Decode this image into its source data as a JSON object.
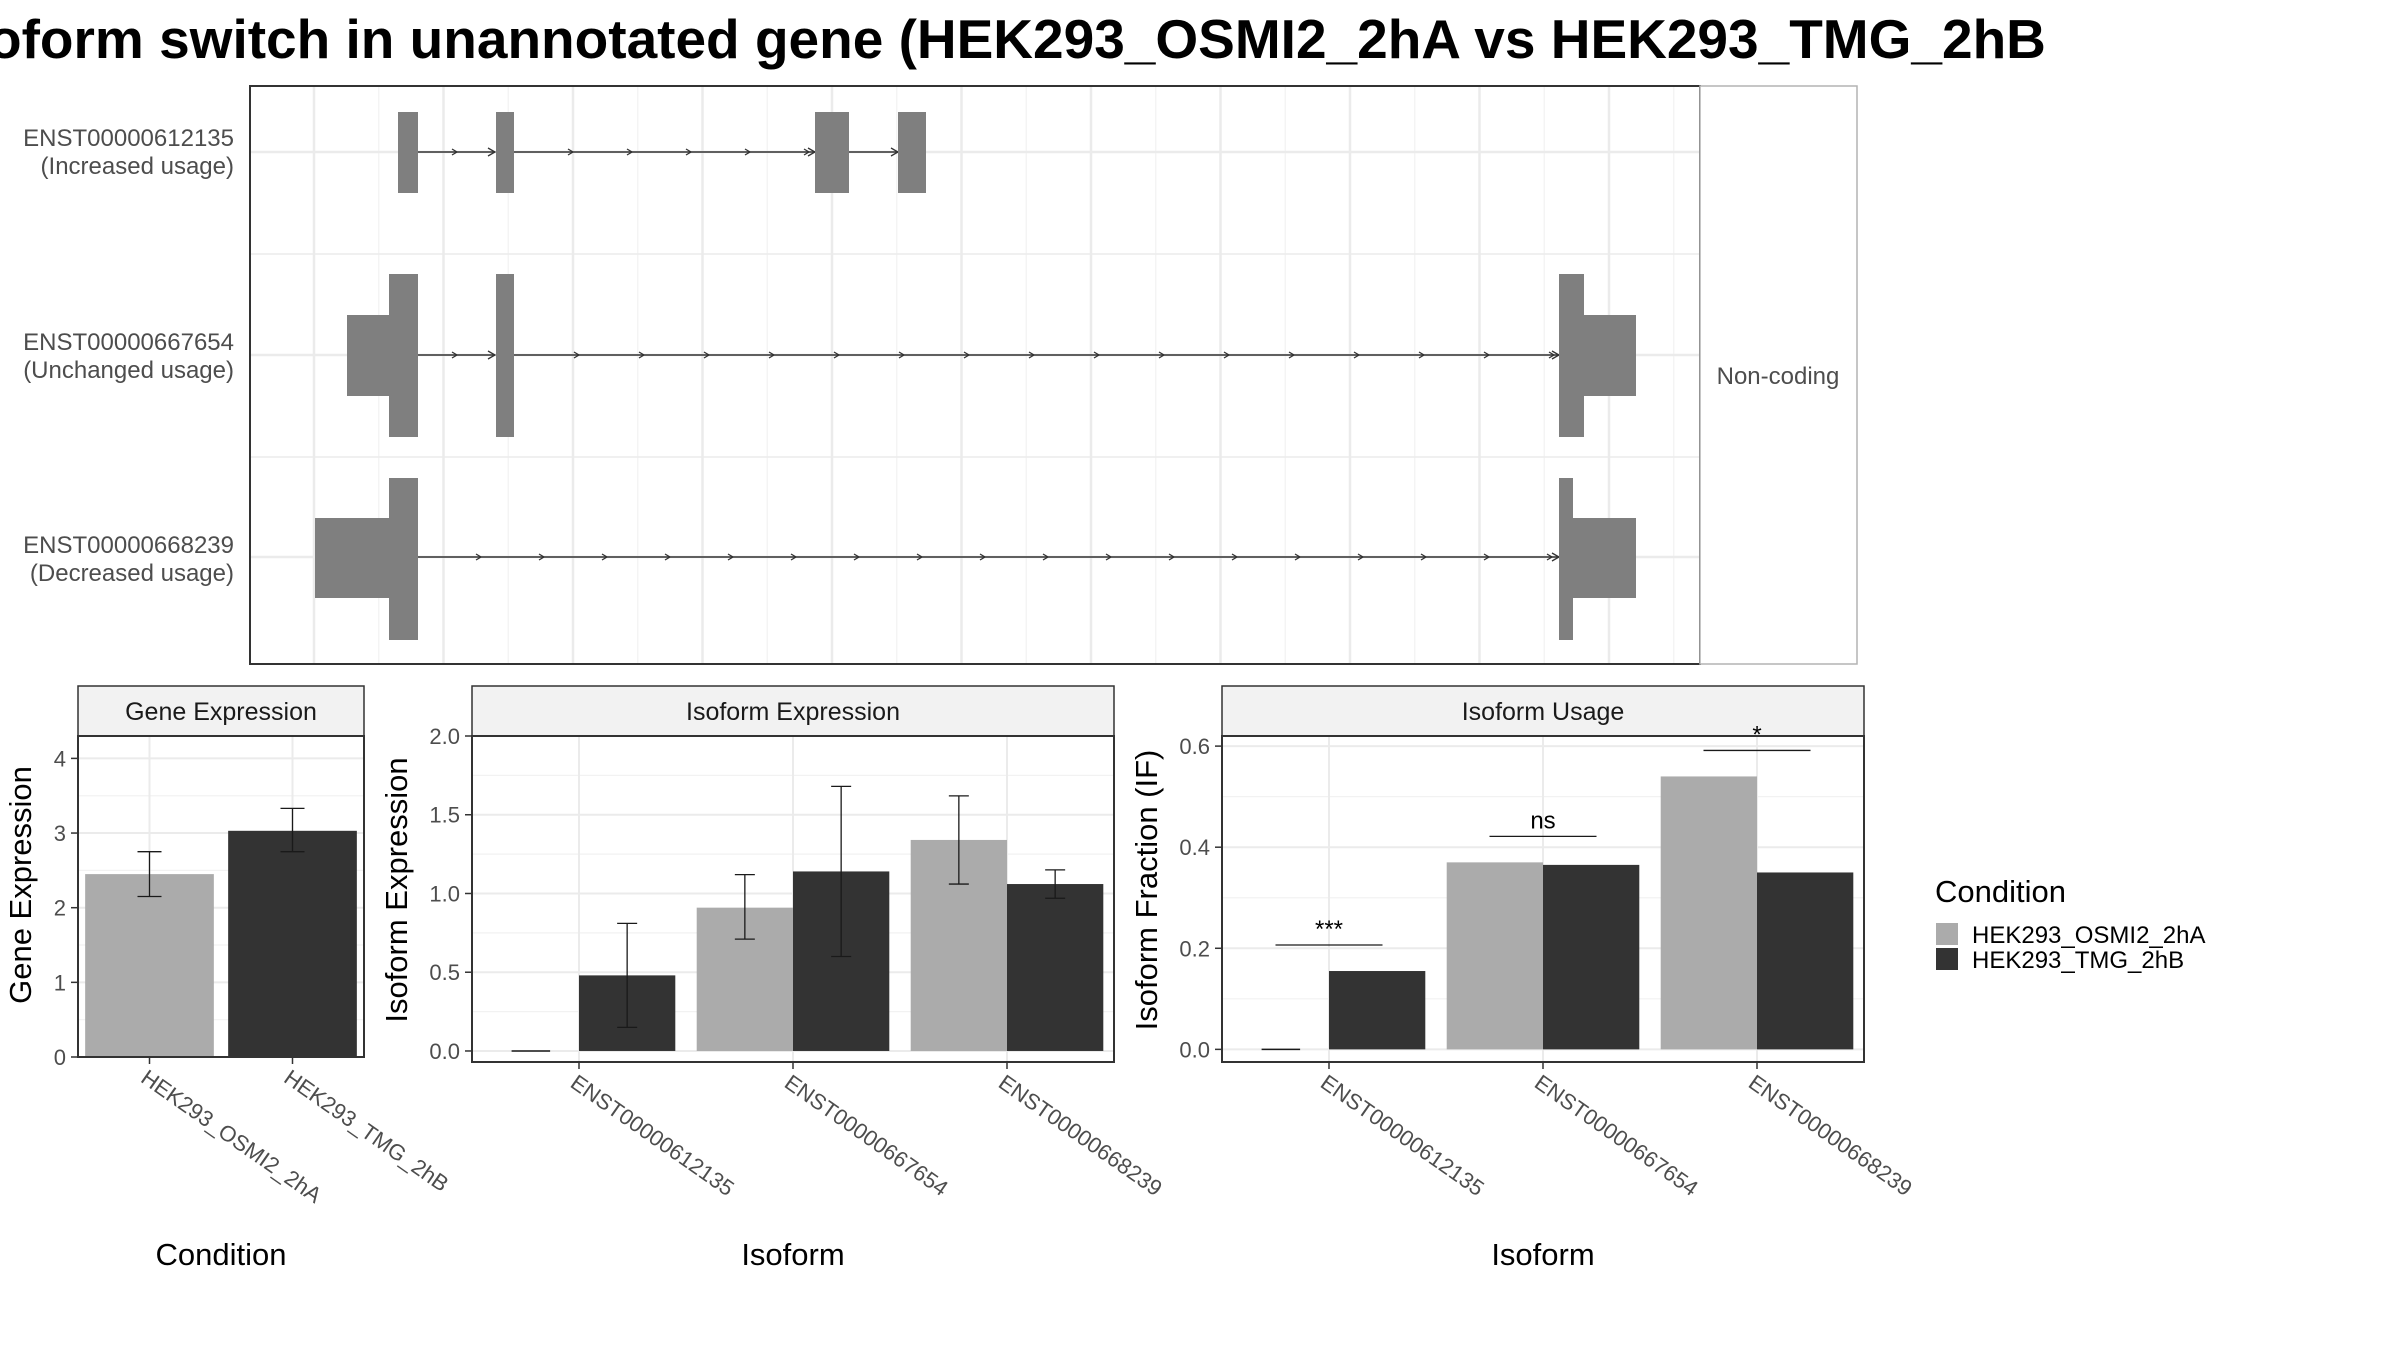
{
  "title": "oform switch in unannotated gene (HEK293_OSMI2_2hA vs HEK293_TMG_2hB",
  "colors": {
    "condition_a": "#ababab",
    "condition_b": "#333333",
    "exon": "#7f7f7f",
    "intron": "#333333"
  },
  "gene_model": {
    "side_label": "Non-coding",
    "transcripts": [
      {
        "id": "ENST00000612135",
        "usage": "(Increased usage)"
      },
      {
        "id": "ENST00000667654",
        "usage": "(Unchanged usage)"
      },
      {
        "id": "ENST00000668239",
        "usage": "(Decreased usage)"
      }
    ]
  },
  "legend": {
    "title": "Condition",
    "items": [
      "HEK293_OSMI2_2hA",
      "HEK293_TMG_2hB"
    ]
  },
  "chart_data": [
    {
      "type": "bar",
      "title": "Gene Expression",
      "xlabel": "Condition",
      "ylabel": "Gene Expression",
      "ylim": [
        0,
        4.3
      ],
      "yticks": [
        "0",
        "1",
        "2",
        "3",
        "4"
      ],
      "categories": [
        "HEK293_OSMI2_2hA",
        "HEK293_TMG_2hB"
      ],
      "series": [
        {
          "name": "HEK293_OSMI2_2hA",
          "values": [
            2.45,
            null
          ],
          "err_low": [
            2.15,
            null
          ],
          "err_high": [
            2.75,
            null
          ]
        },
        {
          "name": "HEK293_TMG_2hB",
          "values": [
            null,
            3.03
          ],
          "err_low": [
            null,
            2.75
          ],
          "err_high": [
            null,
            3.33
          ]
        }
      ]
    },
    {
      "type": "bar",
      "title": "Isoform Expression",
      "xlabel": "Isoform",
      "ylabel": "Isoform Expression",
      "ylim": [
        -0.07,
        2.0
      ],
      "yticks": [
        "0.0",
        "0.5",
        "1.0",
        "1.5",
        "2.0"
      ],
      "categories": [
        "ENST00000612135",
        "ENST00000667654",
        "ENST00000668239"
      ],
      "series": [
        {
          "name": "HEK293_OSMI2_2hA",
          "values": [
            0.0,
            0.91,
            1.34
          ],
          "err_low": [
            0.0,
            0.71,
            1.06
          ],
          "err_high": [
            0.0,
            1.12,
            1.62
          ]
        },
        {
          "name": "HEK293_TMG_2hB",
          "values": [
            0.48,
            1.14,
            1.06
          ],
          "err_low": [
            0.15,
            0.6,
            0.97
          ],
          "err_high": [
            0.81,
            1.68,
            1.15
          ]
        }
      ]
    },
    {
      "type": "bar",
      "title": "Isoform Usage",
      "xlabel": "Isoform",
      "ylabel": "Isoform Fraction (IF)",
      "ylim": [
        -0.025,
        0.62
      ],
      "yticks": [
        "0.0",
        "0.2",
        "0.4",
        "0.6"
      ],
      "categories": [
        "ENST00000612135",
        "ENST00000667654",
        "ENST00000668239"
      ],
      "series": [
        {
          "name": "HEK293_OSMI2_2hA",
          "values": [
            0.0,
            0.37,
            0.54
          ]
        },
        {
          "name": "HEK293_TMG_2hB",
          "values": [
            0.155,
            0.365,
            0.35
          ]
        }
      ],
      "significance": [
        "***",
        "ns",
        "*"
      ]
    }
  ]
}
